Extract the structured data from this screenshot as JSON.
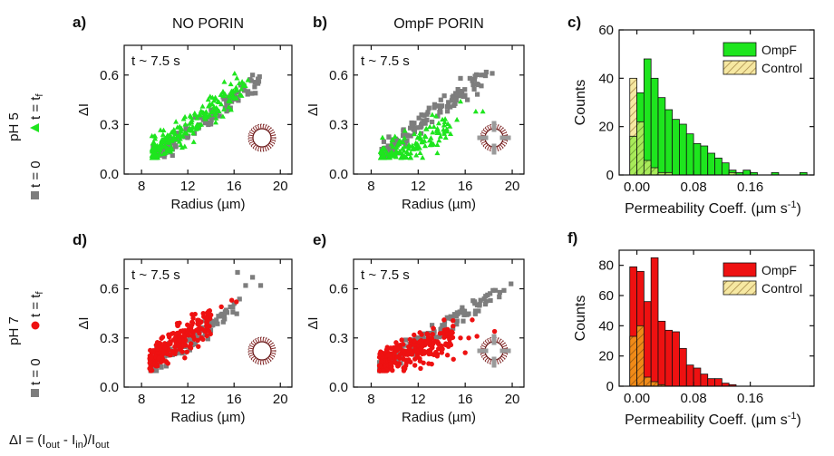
{
  "colors": {
    "gray": "#7d7d7d",
    "green": "#1ee51e",
    "red": "#ee1111",
    "control_fill": "#f6e8a2",
    "control_hatch": "#a98c4a"
  },
  "row_labels": {
    "pH5": {
      "ph": "pH 5",
      "t0": "t = 0",
      "tf_pre": "t = t",
      "tf_sub": "f"
    },
    "pH7": {
      "ph": "pH 7",
      "t0": "t = 0",
      "tf_pre": "t = t",
      "tf_sub": "f"
    }
  },
  "formula": {
    "prefix": "ΔI = (I",
    "out1": "out",
    "minus": " - I",
    "in": "in",
    "close": ")/I",
    "out2": "out"
  },
  "chart_data": [
    {
      "id": "a",
      "type": "scatter",
      "panel_label": "a)",
      "title": "NO PORIN",
      "annotation": "t ~ 7.5 s",
      "xlabel": "Radius (µm)",
      "ylabel": "ΔI",
      "xlim": [
        6.5,
        21
      ],
      "ylim": [
        0,
        0.78
      ],
      "xticks": [
        8,
        12,
        16,
        20
      ],
      "xtick_labels": [
        "8",
        "12",
        "16",
        "20"
      ],
      "yticks": [
        0,
        0.3,
        0.6
      ],
      "ytick_labels": [
        "0.0",
        "0.3",
        "0.6"
      ],
      "series": [
        {
          "marker": "square",
          "color": "gray",
          "cluster": {
            "n": 110,
            "x": [
              9,
              18.2
            ],
            "slope": 0.052,
            "intercept": -0.37,
            "spread": 0.03
          },
          "points": [
            [
              17.6,
              0.6
            ],
            [
              18.2,
              0.59
            ],
            [
              16.8,
              0.52
            ]
          ]
        },
        {
          "marker": "triangle",
          "color": "green",
          "cluster": {
            "n": 230,
            "x": [
              8.9,
              17.0
            ],
            "slope": 0.052,
            "intercept": -0.34,
            "spread": 0.04
          },
          "points": [
            [
              17.2,
              0.57
            ],
            [
              9.1,
              0.23
            ]
          ]
        }
      ],
      "inset": "vesicle-plain-icon"
    },
    {
      "id": "b",
      "type": "scatter",
      "panel_label": "b)",
      "title": "OmpF PORIN",
      "annotation": "t ~ 7.5 s",
      "xlabel": "Radius (µm)",
      "ylabel": "ΔI",
      "xlim": [
        6.5,
        21
      ],
      "ylim": [
        0,
        0.78
      ],
      "xticks": [
        8,
        12,
        16,
        20
      ],
      "xtick_labels": [
        "8",
        "12",
        "16",
        "20"
      ],
      "yticks": [
        0,
        0.3,
        0.6
      ],
      "ytick_labels": [
        "0.0",
        "0.3",
        "0.6"
      ],
      "series": [
        {
          "marker": "square",
          "color": "gray",
          "cluster": {
            "n": 140,
            "x": [
              8.9,
              17.8
            ],
            "slope": 0.054,
            "intercept": -0.36,
            "spread": 0.03
          },
          "points": [
            [
              16.4,
              0.58
            ],
            [
              17.6,
              0.6
            ],
            [
              18.3,
              0.61
            ],
            [
              15.6,
              0.58
            ]
          ]
        },
        {
          "marker": "triangle",
          "color": "green",
          "cluster": {
            "n": 150,
            "x": [
              8.8,
              14.8
            ],
            "slope": 0.035,
            "intercept": -0.23,
            "spread": 0.045
          },
          "points": [
            [
              15.6,
              0.44
            ],
            [
              16.9,
              0.38
            ],
            [
              17.5,
              0.38
            ],
            [
              15.3,
              0.33
            ],
            [
              13.2,
              0.36
            ]
          ]
        }
      ],
      "inset": "vesicle-porin-icon"
    },
    {
      "id": "c",
      "type": "bar",
      "panel_label": "c)",
      "xlabel": "Permeability Coeff. (µm s",
      "xlabel_sup": "-1",
      "xlabel_end": ")",
      "ylabel": "Counts",
      "xlim": [
        -0.025,
        0.25
      ],
      "ylim": [
        0,
        60
      ],
      "xticks": [
        0.0,
        0.08,
        0.16
      ],
      "xtick_labels": [
        "0.00",
        "0.08",
        "0.16"
      ],
      "yticks": [
        0,
        20,
        40,
        60
      ],
      "ytick_labels": [
        "0",
        "20",
        "40",
        "60"
      ],
      "bin_start": -0.01,
      "bin_width": 0.01,
      "series": [
        {
          "name": "OmpF",
          "color": "green",
          "values": [
            16,
            34,
            48,
            40,
            32,
            27,
            23,
            21,
            17,
            13,
            12,
            9,
            7,
            5,
            2,
            1,
            2,
            1,
            0,
            0,
            1,
            0,
            0,
            0,
            1
          ]
        },
        {
          "name": "Control",
          "color": "control",
          "values": [
            40,
            22,
            6,
            3,
            1,
            1,
            0,
            0,
            0,
            0,
            0,
            0,
            0,
            0,
            1,
            0,
            0,
            0,
            0,
            0,
            0,
            0,
            0,
            0,
            0
          ]
        }
      ],
      "legend": "top-right"
    },
    {
      "id": "d",
      "type": "scatter",
      "panel_label": "d)",
      "annotation": "t ~ 7.5 s",
      "xlabel": "Radius (µm)",
      "ylabel": "ΔI",
      "xlim": [
        6.5,
        21
      ],
      "ylim": [
        0,
        0.78
      ],
      "xticks": [
        8,
        12,
        16,
        20
      ],
      "xtick_labels": [
        "8",
        "12",
        "16",
        "20"
      ],
      "yticks": [
        0,
        0.3,
        0.6
      ],
      "ytick_labels": [
        "0.0",
        "0.3",
        "0.6"
      ],
      "series": [
        {
          "marker": "square",
          "color": "gray",
          "cluster": {
            "n": 120,
            "x": [
              8.8,
              16.5
            ],
            "slope": 0.05,
            "intercept": -0.32,
            "spread": 0.03
          },
          "points": [
            [
              16.3,
              0.7
            ],
            [
              17.6,
              0.67
            ],
            [
              18.3,
              0.62
            ],
            [
              17.0,
              0.62
            ],
            [
              16.0,
              0.51
            ]
          ]
        },
        {
          "marker": "circle",
          "color": "red",
          "cluster": {
            "n": 220,
            "x": [
              8.7,
              14.0
            ],
            "slope": 0.05,
            "intercept": -0.28,
            "spread": 0.045
          },
          "points": [
            [
              14.0,
              0.44
            ],
            [
              14.9,
              0.49
            ],
            [
              15.8,
              0.53
            ],
            [
              16.2,
              0.52
            ]
          ]
        }
      ],
      "inset": "vesicle-plain-icon"
    },
    {
      "id": "e",
      "type": "scatter",
      "panel_label": "e)",
      "annotation": "t ~ 7.5 s",
      "xlabel": "Radius (µm)",
      "ylabel": "ΔI",
      "xlim": [
        6.5,
        21
      ],
      "ylim": [
        0,
        0.78
      ],
      "xticks": [
        8,
        12,
        16,
        20
      ],
      "xtick_labels": [
        "8",
        "12",
        "16",
        "20"
      ],
      "yticks": [
        0,
        0.3,
        0.6
      ],
      "ytick_labels": [
        "0.0",
        "0.3",
        "0.6"
      ],
      "series": [
        {
          "marker": "square",
          "color": "gray",
          "cluster": {
            "n": 150,
            "x": [
              8.7,
              19.0
            ],
            "slope": 0.044,
            "intercept": -0.26,
            "spread": 0.03
          },
          "points": [
            [
              19.9,
              0.63
            ],
            [
              19.3,
              0.59
            ],
            [
              18.9,
              0.55
            ]
          ]
        },
        {
          "marker": "circle",
          "color": "red",
          "cluster": {
            "n": 260,
            "x": [
              8.7,
              15.0
            ],
            "slope": 0.028,
            "intercept": -0.11,
            "spread": 0.045
          },
          "points": [
            [
              15.6,
              0.3
            ],
            [
              16.3,
              0.3
            ],
            [
              17.0,
              0.31
            ],
            [
              18.5,
              0.34
            ],
            [
              16.0,
              0.21
            ],
            [
              15.0,
              0.17
            ],
            [
              14.2,
              0.41
            ],
            [
              16.6,
              0.41
            ]
          ]
        }
      ],
      "inset": "vesicle-porin-icon"
    },
    {
      "id": "f",
      "type": "bar",
      "panel_label": "f)",
      "xlabel": "Permeability Coeff. (µm s",
      "xlabel_sup": "-1",
      "xlabel_end": ")",
      "ylabel": "Counts",
      "xlim": [
        -0.025,
        0.25
      ],
      "ylim": [
        0,
        90
      ],
      "xticks": [
        0.0,
        0.08,
        0.16
      ],
      "xtick_labels": [
        "0.00",
        "0.08",
        "0.16"
      ],
      "yticks": [
        0,
        20,
        40,
        60,
        80
      ],
      "ytick_labels": [
        "0",
        "20",
        "40",
        "60",
        "80"
      ],
      "bin_start": -0.01,
      "bin_width": 0.01,
      "series": [
        {
          "name": "OmpF",
          "color": "red",
          "values": [
            79,
            76,
            56,
            85,
            43,
            37,
            36,
            25,
            14,
            12,
            8,
            5,
            5,
            2,
            1,
            0,
            0,
            0,
            0,
            0,
            0,
            0,
            0,
            0,
            0
          ]
        },
        {
          "name": "Control",
          "color": "control",
          "values": [
            33,
            40,
            6,
            3,
            1,
            0,
            0,
            0,
            0,
            0,
            0,
            0,
            0,
            0,
            0,
            0,
            0,
            0,
            0,
            0,
            0,
            0,
            0,
            0,
            0
          ]
        }
      ],
      "legend": "top-right"
    }
  ]
}
